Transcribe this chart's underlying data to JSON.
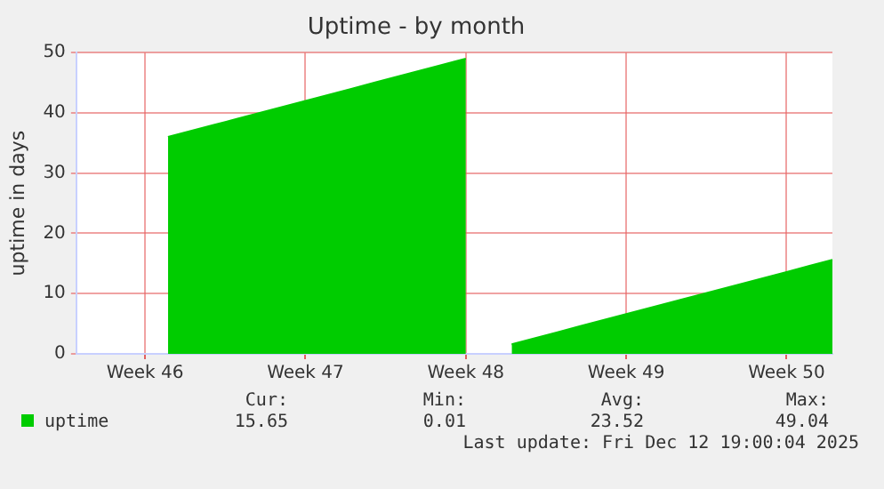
{
  "chart_data": {
    "type": "area",
    "title": "Uptime - by month",
    "ylabel": "uptime in days",
    "categories": [
      null,
      null,
      null,
      "Week 46",
      null,
      null,
      null,
      null,
      null,
      null,
      "Week 47",
      null,
      null,
      null,
      null,
      null,
      null,
      "Week 48",
      null,
      null,
      null,
      null,
      null,
      null,
      "Week 49",
      null,
      null,
      null,
      null,
      null,
      null,
      "Week 50",
      null,
      null
    ],
    "series": [
      {
        "name": "uptime",
        "color": "#00cc00",
        "values": [
          null,
          null,
          null,
          null,
          36,
          37,
          38,
          39,
          40,
          41,
          42,
          43,
          44,
          45,
          46,
          47,
          48,
          49,
          null,
          1.6,
          2.6,
          3.6,
          4.6,
          5.6,
          6.6,
          7.6,
          8.6,
          9.6,
          10.6,
          11.6,
          12.6,
          13.6,
          14.6,
          15.6
        ]
      }
    ],
    "ylim": [
      0,
      50
    ],
    "yticks": [
      0,
      10,
      20,
      30,
      40,
      50
    ],
    "grid": true,
    "legend": "bottom left",
    "marker": "none",
    "annotations": [
      "Cur:",
      "Min:",
      "Avg:",
      "Max:",
      "15.65",
      "0.01",
      "23.52",
      "49.04",
      "Last update: Fri Dec 12 19:00:04 2025"
    ]
  }
}
